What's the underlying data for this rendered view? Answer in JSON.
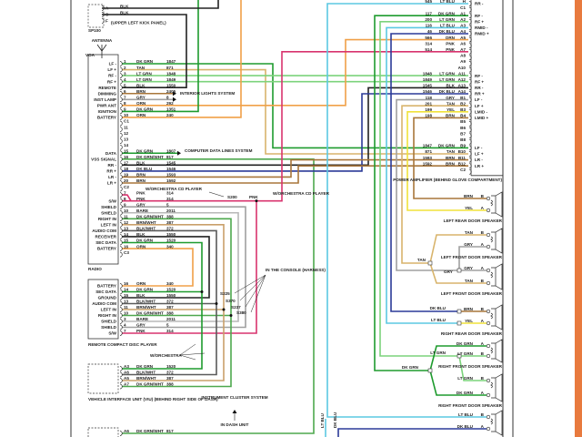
{
  "wire_colors": {
    "DK GRN": "#1e9b2e",
    "LT GRN": "#7cd37c",
    "TAN": "#d8b46c",
    "ORN": "#f0a048",
    "PNK": "#d8336e",
    "BLK": "#222222",
    "BRN": "#a8763a",
    "GRY": "#a0a0a0",
    "DK BLU": "#2b3a98",
    "LT BLU": "#5cc8e2",
    "YEL": "#f0e23a",
    "BARE": "#b8b8b8",
    "BLK/WHT": "#5a5a5a",
    "BRN/WHT": "#c9a06a",
    "DK GRN/WHT": "#4ea84e"
  },
  "frame": {
    "accent": "#e87a3e"
  },
  "antenna_connector": {
    "tag": "SP100",
    "note": "(UPPER LEFT KICK PANEL)",
    "pins": [
      {
        "pin": "A",
        "color": "BLK"
      },
      {
        "pin": "C",
        "color": "BLK"
      },
      {
        "pin": "F",
        "color": ""
      }
    ],
    "antenna_label": "ANTENNA",
    "antenna_sub": "VOA"
  },
  "radio": {
    "label": "RADIO",
    "rows": [
      {
        "pin": "1",
        "label": "LF -",
        "color": "DK GRN",
        "circuit": "1847"
      },
      {
        "pin": "2",
        "label": "LF +",
        "color": "TAN",
        "circuit": "871"
      },
      {
        "pin": "3",
        "label": "RF -",
        "color": "LT GRN",
        "circuit": "1848"
      },
      {
        "pin": "4",
        "label": "RF +",
        "color": "LT GRN",
        "circuit": "1849"
      },
      {
        "pin": "5",
        "label": "REMOTE",
        "color": "BLK",
        "circuit": "1550"
      },
      {
        "pin": "6",
        "label": "DIMMING",
        "color": "BRN",
        "circuit": "2405"
      },
      {
        "pin": "7",
        "label": "INST LAMP",
        "color": "GRY",
        "circuit": "8"
      },
      {
        "pin": "8",
        "label": "PWR ANT",
        "color": "ORN",
        "circuit": "292"
      },
      {
        "pin": "9",
        "label": "IGNITION",
        "color": "DK GRN",
        "circuit": "1351"
      },
      {
        "pin": "10",
        "label": "BATTERY",
        "color": "ORN",
        "circuit": "240"
      },
      {
        "pin": "C1",
        "label": "",
        "color": "",
        "circuit": ""
      },
      {
        "pin": "11",
        "label": "",
        "color": "",
        "circuit": ""
      },
      {
        "pin": "12",
        "label": "",
        "color": "",
        "circuit": ""
      },
      {
        "pin": "13",
        "label": "",
        "color": "",
        "circuit": ""
      },
      {
        "pin": "14",
        "label": "",
        "color": "",
        "circuit": ""
      },
      {
        "pin": "15",
        "label": "DATA",
        "color": "DK GRN",
        "circuit": "1807"
      },
      {
        "pin": "16",
        "label": "VSS SIGNAL",
        "color": "DK GRN/WHT",
        "circuit": "817"
      },
      {
        "pin": "17",
        "label": "RR -",
        "color": "BLK",
        "circuit": "1545"
      },
      {
        "pin": "18",
        "label": "RR +",
        "color": "DK BLU",
        "circuit": "1546"
      },
      {
        "pin": "19",
        "label": "LR -",
        "color": "BRN",
        "circuit": "1593"
      },
      {
        "pin": "20",
        "label": "LR +",
        "color": "BRN",
        "circuit": "1592"
      },
      {
        "pin": "C2",
        "label": "",
        "color": "",
        "circuit": ""
      },
      {
        "pin": "7",
        "label": "",
        "color": "PNK",
        "circuit": "314"
      },
      {
        "pin": "8",
        "label": "S/W",
        "color": "PNK",
        "circuit": "314"
      },
      {
        "pin": "9",
        "label": "SHIELD",
        "color": "GRY",
        "circuit": "5"
      },
      {
        "pin": "10",
        "label": "SHIELD",
        "color": "BARE",
        "circuit": "2011"
      },
      {
        "pin": "11",
        "label": "RIGHT IN",
        "color": "DK GRN/WHT",
        "circuit": "388"
      },
      {
        "pin": "12",
        "label": "LEFT IN",
        "color": "BRN/WHT",
        "circuit": "387"
      },
      {
        "pin": "13",
        "label": "AUDIO COM",
        "color": "BLK/WHT",
        "circuit": "372"
      },
      {
        "pin": "14",
        "label": "RECEIVER",
        "color": "BLK",
        "circuit": "1550"
      },
      {
        "pin": "15",
        "label": "SEC DATA",
        "color": "DK GRN",
        "circuit": "1520"
      },
      {
        "pin": "16",
        "label": "BATTERY",
        "color": "ORN",
        "circuit": "340"
      },
      {
        "pin": "C3",
        "label": "",
        "color": "",
        "circuit": ""
      }
    ]
  },
  "remote_cd": {
    "label": "REMOTE COMPACT DISC PLAYER",
    "rows": [
      {
        "pin": "16",
        "label": "BATTERY",
        "color": "ORN",
        "circuit": "340"
      },
      {
        "pin": "14",
        "label": "SEC DATA",
        "color": "DK GRN",
        "circuit": "1520"
      },
      {
        "pin": "15",
        "label": "GROUND",
        "color": "BLK",
        "circuit": "1550"
      },
      {
        "pin": "13",
        "label": "AUDIO COM",
        "color": "BLK/WHT",
        "circuit": "372"
      },
      {
        "pin": "11",
        "label": "LEFT IN",
        "color": "BRN/WHT",
        "circuit": "387"
      },
      {
        "pin": "10",
        "label": "RIGHT IN",
        "color": "DK GRN/WHT",
        "circuit": "388"
      },
      {
        "pin": "3",
        "label": "SHIELD",
        "color": "BARE",
        "circuit": "2011"
      },
      {
        "pin": "4",
        "label": "SHIELD",
        "color": "GRY",
        "circuit": "5"
      },
      {
        "pin": "7",
        "label": "S/W",
        "color": "PNK",
        "circuit": "314"
      }
    ]
  },
  "viu": {
    "label": "VEHICLE INTERFACE UNIT (VIU) (BEHIND RIGHT SIDE OF DASH)",
    "rows": [
      {
        "pin": "A3",
        "color": "DK GRN",
        "circuit": "1520"
      },
      {
        "pin": "A6",
        "color": "BLK/WHT",
        "circuit": "372"
      },
      {
        "pin": "A5",
        "color": "BRN/WHT",
        "circuit": "387"
      },
      {
        "pin": "A7",
        "color": "DK GRN/WHT",
        "circuit": "388"
      }
    ]
  },
  "bottom_connector": {
    "pin": "A6",
    "color": "DK GRN/WHT",
    "circuit": "817"
  },
  "amplifier": {
    "label": "POWER AMPLIFIER (BEHIND GLOVE COMPARTMENT)",
    "rows": [
      {
        "pin": "H",
        "label": "RR -",
        "color": "LT BLU",
        "circuit": "545"
      },
      {
        "pin": "C1",
        "label": "",
        "color": "",
        "circuit": ""
      },
      {
        "pin": "A1",
        "label": "RF -",
        "color": "DK GRN",
        "circuit": "117"
      },
      {
        "pin": "A2",
        "label": "RF +",
        "color": "LT GRN",
        "circuit": "200"
      },
      {
        "pin": "A3",
        "label": "RMID -",
        "color": "LT BLU",
        "circuit": "116"
      },
      {
        "pin": "A4",
        "label": "RMID +",
        "color": "DK BLU",
        "circuit": "46"
      },
      {
        "pin": "A5",
        "label": "",
        "color": "ORN",
        "circuit": "566"
      },
      {
        "pin": "A6",
        "label": "",
        "color": "PNK",
        "circuit": "314"
      },
      {
        "pin": "A7",
        "label": "",
        "color": "PNK",
        "circuit": "514"
      },
      {
        "pin": "A8",
        "label": "",
        "color": "",
        "circuit": ""
      },
      {
        "pin": "A9",
        "label": "",
        "color": "",
        "circuit": ""
      },
      {
        "pin": "A10",
        "label": "",
        "color": "",
        "circuit": ""
      },
      {
        "pin": "A11",
        "label": "RF -",
        "color": "LT GRN",
        "circuit": "1848"
      },
      {
        "pin": "A12",
        "label": "RF +",
        "color": "LT GRN",
        "circuit": "1849"
      },
      {
        "pin": "A13",
        "label": "RR -",
        "color": "BLK",
        "circuit": "1545"
      },
      {
        "pin": "A14",
        "label": "RR +",
        "color": "DK BLU",
        "circuit": "1546"
      },
      {
        "pin": "B1",
        "label": "LF -",
        "color": "GRY",
        "circuit": "118"
      },
      {
        "pin": "B2",
        "label": "LF +",
        "color": "TAN",
        "circuit": "201"
      },
      {
        "pin": "B3",
        "label": "LMID -",
        "color": "YEL",
        "circuit": "199"
      },
      {
        "pin": "B4",
        "label": "LMID +",
        "color": "BRN",
        "circuit": "198"
      },
      {
        "pin": "B5",
        "label": "",
        "color": "",
        "circuit": ""
      },
      {
        "pin": "B6",
        "label": "",
        "color": "",
        "circuit": ""
      },
      {
        "pin": "B7",
        "label": "",
        "color": "",
        "circuit": ""
      },
      {
        "pin": "B8",
        "label": "",
        "color": "",
        "circuit": ""
      },
      {
        "pin": "B9",
        "label": "LF -",
        "color": "DK GRN",
        "circuit": "1847"
      },
      {
        "pin": "B10",
        "label": "LF +",
        "color": "TAN",
        "circuit": "871"
      },
      {
        "pin": "B11",
        "label": "LR -",
        "color": "BRN",
        "circuit": "1593"
      },
      {
        "pin": "B12",
        "label": "LR +",
        "color": "BRN",
        "circuit": "1592"
      },
      {
        "pin": "C2",
        "label": "",
        "color": "",
        "circuit": ""
      }
    ]
  },
  "speakers": [
    {
      "name": "LEFT REAR DOOR SPEAKER",
      "pins": [
        {
          "pin": "B",
          "color": "BRN"
        },
        {
          "pin": "A",
          "color": "YEL"
        }
      ]
    },
    {
      "name": "LEFT FRONT DOOR SPEAKER",
      "pins": [
        {
          "pin": "B",
          "color": "TAN"
        },
        {
          "pin": "A",
          "color": "GRY"
        }
      ]
    },
    {
      "name": "LEFT FRONT DOOR SPEAKER",
      "pins": [
        {
          "pin": "A",
          "color": "GRY"
        },
        {
          "pin": "B",
          "color": "TAN"
        }
      ]
    },
    {
      "name": "RIGHT REAR DOOR SPEAKER",
      "pins": [
        {
          "pin": "B",
          "color": "BRN"
        },
        {
          "pin": "A",
          "color": "YEL"
        }
      ]
    },
    {
      "name": "RIGHT FRONT DOOR SPEAKER",
      "pins": [
        {
          "pin": "A",
          "color": "DK GRN"
        },
        {
          "pin": "B",
          "color": "LT GRN"
        }
      ]
    },
    {
      "name": "RIGHT FRONT DOOR SPEAKER",
      "pins": [
        {
          "pin": "B",
          "color": "LT GRN"
        },
        {
          "pin": "A",
          "color": "DK GRN"
        }
      ]
    },
    {
      "name": "",
      "pins": [
        {
          "pin": "B",
          "color": "LT BLU"
        },
        {
          "pin": "A",
          "color": "DK BLU"
        }
      ]
    }
  ],
  "annotations": {
    "interior_lights": "INTERIOR LIGHTS SYSTEM",
    "computer_data": "COMPUTER DATA LINES SYSTEM",
    "orchestra_1": "W/ORCHESTRA CD PLAYER",
    "orchestra_2": "W/ORCHESTRA CD PLAYER",
    "splice_s200": "S200",
    "pnk_label": "PNK",
    "in_console": "IN THE CONSOLE (HARNESS)",
    "splices": [
      "S225",
      "S370",
      "S237",
      "S380"
    ],
    "w_orchestra": "W/ORCHESTRA",
    "instrument_cluster": "INSTRUMENT CLUSTER SYSTEM",
    "in_dash": "IN DASH UNIT",
    "tan_label": "TAN",
    "gry_label": "GRY",
    "dkblu_label": "DK BLU",
    "ltblu_label": "LT BLU",
    "ltgrn_label": "LT GRN",
    "dkgrn_label": "DK GRN",
    "vert_ltblu": "LT BLU",
    "vert_dkblu": "DK BLU"
  }
}
